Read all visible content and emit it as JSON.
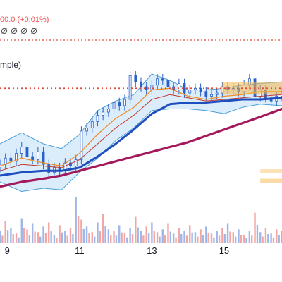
{
  "header": {
    "price_change": "00.0 (+0.01%)",
    "indicator_label": "mple)",
    "status_icons": [
      "hidden-icon",
      "hidden-icon",
      "hidden-icon",
      "hidden-icon"
    ]
  },
  "colors": {
    "up": "#26a69a",
    "down": "#ef5350",
    "candle": "#2a61c9",
    "bb_fill": "#cfe6f8",
    "bb_line": "#4a9fd8",
    "ma_fast": "#f08c28",
    "ma_mid": "#c0392b",
    "ma_slow": "#1f4fbf",
    "ma_long": "#a3195b",
    "price_line": "#e04b3a",
    "highlight": "#f7b84b"
  },
  "chart_data": {
    "type": "line",
    "x_tick_labels": [
      "9",
      "11",
      "13",
      "15"
    ],
    "x_tick_positions_day": [
      9,
      11,
      13,
      15
    ],
    "x_range_day": [
      8.8,
      16.6
    ],
    "y_range": [
      0,
      100
    ],
    "legend": {
      "placement": "top-left"
    },
    "grid": false,
    "series": [
      {
        "key": "bb_upper",
        "x": [
          8.8,
          9.4,
          10.0,
          10.5,
          11.0,
          11.5,
          12.0,
          12.5,
          13.0,
          13.5,
          14.0,
          14.5,
          15.0,
          15.5,
          16.0,
          16.6
        ],
        "y": [
          36,
          43,
          36,
          33,
          42,
          57,
          63,
          67,
          80,
          76,
          70,
          70,
          71,
          73,
          74,
          75
        ]
      },
      {
        "key": "bb_lower",
        "x": [
          8.8,
          9.4,
          10.0,
          10.5,
          11.0,
          11.5,
          12.0,
          12.5,
          13.0,
          13.5,
          14.0,
          14.5,
          15.0,
          15.5,
          16.0,
          16.6
        ],
        "y": [
          12,
          6,
          8,
          7,
          18,
          27,
          38,
          46,
          57,
          58,
          58,
          57,
          55,
          59,
          61,
          60
        ]
      },
      {
        "key": "ma_fast",
        "x": [
          8.8,
          9.4,
          10.0,
          10.5,
          11.0,
          11.5,
          12.0,
          12.5,
          13.0,
          13.5,
          14.0,
          14.5,
          15.0,
          15.5,
          16.0,
          16.6
        ],
        "y": [
          22,
          27,
          24,
          22,
          30,
          42,
          52,
          59,
          70,
          71,
          66,
          64,
          66,
          67,
          69,
          69
        ]
      },
      {
        "key": "ma_mid",
        "x": [
          8.8,
          9.4,
          10.0,
          10.5,
          11.0,
          11.5,
          12.0,
          12.5,
          13.0,
          13.5,
          14.0,
          14.5,
          15.0,
          15.5,
          16.0,
          16.6
        ],
        "y": [
          19,
          23,
          22,
          21,
          26,
          36,
          46,
          54,
          64,
          67,
          65,
          63,
          64,
          65,
          66,
          67
        ]
      },
      {
        "key": "ma_slow",
        "x": [
          8.8,
          9.4,
          10.0,
          10.5,
          11.0,
          11.5,
          12.0,
          12.5,
          13.0,
          13.5,
          14.0,
          14.5,
          15.0,
          15.5,
          16.0,
          16.6
        ],
        "y": [
          16,
          18,
          19,
          19,
          21,
          28,
          36,
          45,
          55,
          61,
          62,
          62,
          63,
          64,
          64,
          65
        ]
      },
      {
        "key": "ma_long",
        "x": [
          8.8,
          9.4,
          10.0,
          10.5,
          11.0,
          11.5,
          12.0,
          12.5,
          13.0,
          13.5,
          14.0,
          14.5,
          15.0,
          15.5,
          16.0,
          16.6
        ],
        "y": [
          9,
          12,
          14,
          16,
          19,
          22,
          25,
          28,
          31,
          34,
          37,
          41,
          45,
          49,
          53,
          58
        ]
      },
      {
        "key": "close",
        "x": [
          8.8,
          8.95,
          9.1,
          9.25,
          9.4,
          9.55,
          9.7,
          9.85,
          10.0,
          10.15,
          10.3,
          10.45,
          10.6,
          10.75,
          10.9,
          11.05,
          11.2,
          11.35,
          11.5,
          11.65,
          11.8,
          11.95,
          12.1,
          12.25,
          12.4,
          12.55,
          12.7,
          12.85,
          13.0,
          13.15,
          13.3,
          13.45,
          13.6,
          13.75,
          13.9,
          14.05,
          14.2,
          14.35,
          14.5,
          14.65,
          14.8,
          14.95,
          15.1,
          15.25,
          15.4,
          15.55,
          15.7,
          15.85,
          16.0,
          16.15,
          16.3,
          16.45,
          16.6
        ],
        "y": [
          23,
          27,
          25,
          30,
          34,
          28,
          26,
          31,
          23,
          18,
          21,
          19,
          24,
          22,
          26,
          44,
          46,
          50,
          54,
          56,
          58,
          62,
          60,
          64,
          79,
          75,
          72,
          70,
          73,
          77,
          76,
          72,
          70,
          74,
          68,
          70,
          71,
          69,
          66,
          67,
          68,
          72,
          70,
          71,
          69,
          73,
          77,
          66,
          70,
          65,
          63,
          66,
          68
        ]
      }
    ],
    "current_price_level": 71,
    "upper_dotted_level": 92,
    "volume": {
      "x": [
        8.8,
        8.95,
        9.1,
        9.25,
        9.4,
        9.55,
        9.7,
        9.85,
        10.0,
        10.15,
        10.3,
        10.45,
        10.6,
        10.75,
        10.9,
        11.05,
        11.2,
        11.35,
        11.5,
        11.65,
        11.8,
        11.95,
        12.1,
        12.25,
        12.4,
        12.55,
        12.7,
        12.85,
        13.0,
        13.15,
        13.3,
        13.45,
        13.6,
        13.75,
        13.9,
        14.05,
        14.2,
        14.35,
        14.5,
        14.65,
        14.8,
        14.95,
        15.1,
        15.25,
        15.4,
        15.55,
        15.7,
        15.85,
        16.0,
        16.15,
        16.3,
        16.45,
        16.6
      ],
      "values": [
        18,
        32,
        22,
        14,
        36,
        20,
        28,
        16,
        24,
        30,
        12,
        26,
        18,
        22,
        66,
        34,
        24,
        16,
        30,
        42,
        20,
        18,
        26,
        14,
        22,
        38,
        18,
        24,
        30,
        16,
        20,
        28,
        14,
        22,
        18,
        26,
        16,
        20,
        24,
        14,
        18,
        22,
        28,
        16,
        20,
        12,
        18,
        44,
        16,
        22,
        14,
        20,
        18
      ]
    }
  }
}
